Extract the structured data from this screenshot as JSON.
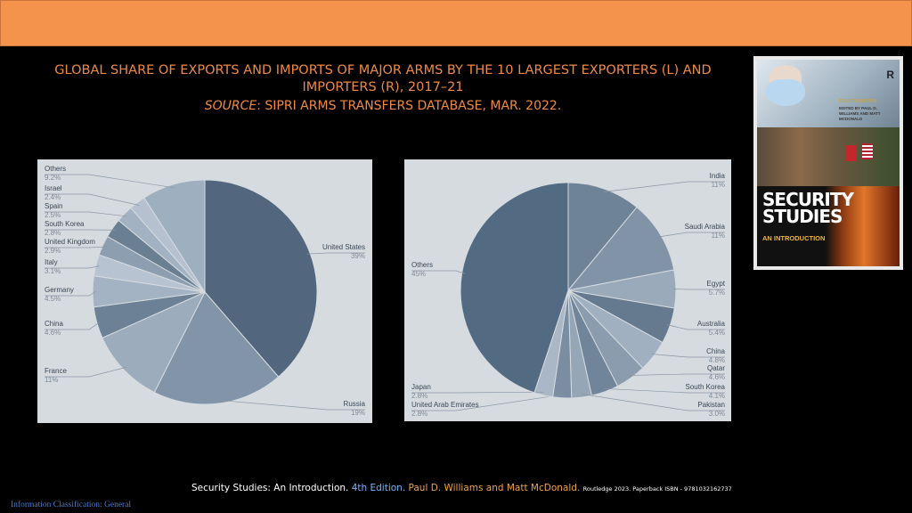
{
  "header": {
    "title": "GLOBAL SHARE OF EXPORTS AND IMPORTS OF MAJOR ARMS BY THE 10 LARGEST EXPORTERS (L) AND IMPORTERS (R), 2017–21",
    "source_label": "SOURCE",
    "source_text": ": SIPRI ARMS TRANSFERS DATABASE, MAR. 2022."
  },
  "chart_data": [
    {
      "type": "pie",
      "categories": [
        "United States",
        "Russia",
        "France",
        "China",
        "Germany",
        "Italy",
        "United Kingdom",
        "South Korea",
        "Spain",
        "Israel",
        "Others"
      ],
      "values": [
        39,
        19,
        11,
        4.6,
        4.5,
        3.1,
        2.9,
        2.8,
        2.5,
        2.4,
        9.2
      ],
      "value_labels": [
        "39%",
        "19%",
        "11%",
        "4.6%",
        "4.5%",
        "3.1%",
        "2.9%",
        "2.8%",
        "2.5%",
        "2.4%",
        "9.2%"
      ],
      "colors": [
        "#52677d",
        "#8194a8",
        "#9cacbd",
        "#6d8196",
        "#a4b3c3",
        "#b7c3d0",
        "#8d9eb1",
        "#6b7f93",
        "#a3b2c2",
        "#b5c1ce",
        "#9eafbf"
      ]
    },
    {
      "type": "pie",
      "categories": [
        "India",
        "Saudi Arabia",
        "Egypt",
        "Australia",
        "China",
        "Qatar",
        "South Korea",
        "Pakistan",
        "United Arab Emirates",
        "Japan",
        "Others"
      ],
      "values": [
        11,
        11,
        5.7,
        5.4,
        4.8,
        4.6,
        4.1,
        3.0,
        2.8,
        2.8,
        45
      ],
      "value_labels": [
        "11%",
        "11%",
        "5.7%",
        "5.4%",
        "4.8%",
        "4.6%",
        "4.1%",
        "3.0%",
        "2.8%",
        "2.8%",
        "45%"
      ],
      "colors": [
        "#6f8397",
        "#8093a7",
        "#9aaabb",
        "#667a8f",
        "#a1b0c0",
        "#8a9cae",
        "#71859a",
        "#95a6b7",
        "#7a8da1",
        "#a9b7c6",
        "#536b82"
      ]
    }
  ],
  "book": {
    "edition": "FOURTH EDITION",
    "editors": "EDITED BY PAUL D. WILLIAMS AND MATT MCDONALD",
    "title_line1": "SECURITY",
    "title_line2": "STUDIES",
    "subtitle": "AN INTRODUCTION",
    "publisher_mark": "R"
  },
  "footer": {
    "book_title": "Security Studies: An Introduction. ",
    "edition": "4th Edition. ",
    "authors": "Paul D. Williams and Matt McDonald. ",
    "publisher": "Routledge 2023. Paperback ISBN - 9781032162737"
  },
  "classification": "Information Classification: General"
}
